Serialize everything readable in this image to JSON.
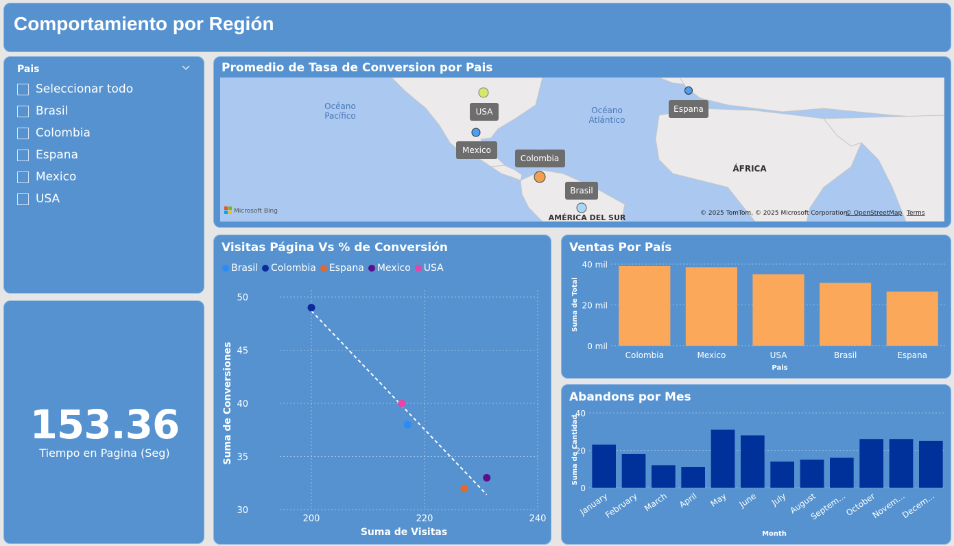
{
  "header": {
    "title": "Comportamiento por Región"
  },
  "slicer": {
    "title": "Pais",
    "items": [
      "Seleccionar todo",
      "Brasil",
      "Colombia",
      "Espana",
      "Mexico",
      "USA"
    ]
  },
  "kpi": {
    "value": "153.36",
    "label": "Tiempo en Pagina (Seg)"
  },
  "map": {
    "title": "Promedio de Tasa de Conversion por Pais",
    "ocean_pacific": [
      "Océano",
      "Pacífico"
    ],
    "ocean_atlantic": [
      "Océano",
      "Atlántico"
    ],
    "continent_africa": "ÁFRICA",
    "continent_sa": "AMÉRICA DEL SUR",
    "bing": "Microsoft Bing",
    "attribution": "© 2025 TomTom, © 2025 Microsoft Corporation,",
    "osm": "© OpenStreetMap",
    "terms": "Terms",
    "markers": [
      {
        "label": "USA",
        "color": "#d4e86a"
      },
      {
        "label": "Mexico",
        "color": "#4a9ff0"
      },
      {
        "label": "Colombia",
        "color": "#f0a050"
      },
      {
        "label": "Brasil",
        "color": "#a8d8f5"
      },
      {
        "label": "Espana",
        "color": "#4a9ff0"
      }
    ]
  },
  "colors": {
    "Brasil": "#2a8cf4",
    "Colombia": "#0d2a9a",
    "Espana": "#e3682b",
    "Mexico": "#5c0f86",
    "USA": "#e447a8",
    "bar_orange": "#fba85a",
    "bar_navy": "#00309a"
  },
  "chart_data": [
    {
      "type": "scatter",
      "title": "Visitas Página Vs % de Conversión",
      "xlabel": "Suma de Visitas",
      "ylabel": "Suma de Conversiones",
      "xlim": [
        200,
        240
      ],
      "ylim": [
        30,
        50
      ],
      "xticks": [
        200,
        220,
        240
      ],
      "yticks": [
        30,
        35,
        40,
        45,
        50
      ],
      "series": [
        {
          "name": "Brasil",
          "x": [
            217
          ],
          "y": [
            38
          ]
        },
        {
          "name": "Colombia",
          "x": [
            200
          ],
          "y": [
            49
          ]
        },
        {
          "name": "Espana",
          "x": [
            227
          ],
          "y": [
            32
          ]
        },
        {
          "name": "Mexico",
          "x": [
            231
          ],
          "y": [
            33
          ]
        },
        {
          "name": "USA",
          "x": [
            216
          ],
          "y": [
            40
          ]
        }
      ],
      "trendline": {
        "x": [
          200,
          231
        ],
        "y": [
          48.7,
          31.4
        ]
      },
      "grid": true,
      "legend": "top-left"
    },
    {
      "type": "bar",
      "title": "Ventas Por País",
      "xlabel": "Pais",
      "ylabel": "Suma de Total",
      "categories": [
        "Colombia",
        "Mexico",
        "USA",
        "Brasil",
        "Espana"
      ],
      "values": [
        39000,
        38500,
        35000,
        30800,
        26500
      ],
      "ylim": [
        0,
        40000
      ],
      "yticks": [
        0,
        20000,
        40000
      ],
      "ytick_labels": [
        "0 mil",
        "20 mil",
        "40 mil"
      ],
      "grid": true
    },
    {
      "type": "bar",
      "title": "Abandons por Mes",
      "xlabel": "Month",
      "ylabel": "Suma de Cantidad",
      "categories": [
        "January",
        "February",
        "March",
        "April",
        "May",
        "June",
        "July",
        "August",
        "Septem...",
        "October",
        "Novem...",
        "Decem..."
      ],
      "values": [
        23,
        18,
        12,
        11,
        31,
        28,
        14,
        15,
        16,
        26,
        26,
        25
      ],
      "ylim": [
        0,
        40
      ],
      "yticks": [
        0,
        20,
        40
      ],
      "grid": true
    }
  ]
}
